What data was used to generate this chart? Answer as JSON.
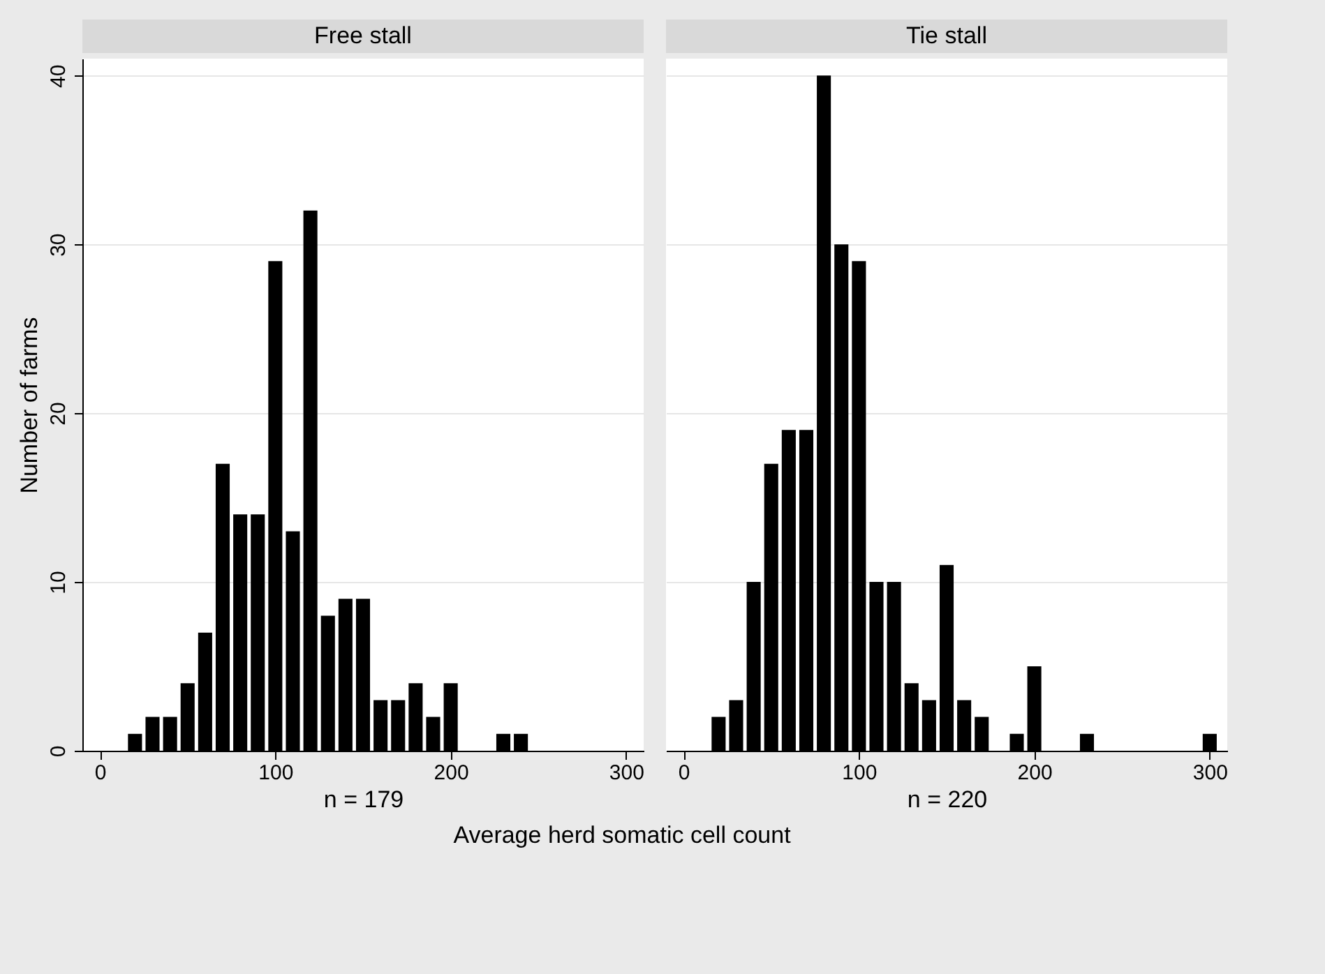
{
  "chart_data": [
    {
      "type": "bar",
      "title": "Free stall",
      "xlabel": "Average herd somatic cell count",
      "ylabel": "Number of farms",
      "annotations": [
        "n = 179"
      ],
      "color": "#000000",
      "xlim": [
        -10,
        310
      ],
      "xticks": [
        0,
        100,
        200,
        300
      ],
      "ylim": [
        0,
        41
      ],
      "yticks": [
        0,
        10,
        20,
        30,
        40
      ],
      "grid": "y",
      "x": [
        20,
        30,
        40,
        50,
        60,
        70,
        80,
        90,
        100,
        110,
        120,
        130,
        140,
        150,
        160,
        170,
        180,
        190,
        200,
        230,
        240
      ],
      "values": [
        1,
        2,
        2,
        4,
        7,
        17,
        14,
        14,
        29,
        13,
        32,
        8,
        9,
        9,
        3,
        3,
        4,
        2,
        4,
        1,
        1
      ]
    },
    {
      "type": "bar",
      "title": "Tie stall",
      "annotations": [
        "n = 220"
      ],
      "color": "#000000",
      "xlim": [
        -10,
        310
      ],
      "xticks": [
        0,
        100,
        200,
        300
      ],
      "ylim": [
        0,
        41
      ],
      "yticks": [
        0,
        10,
        20,
        30,
        40
      ],
      "grid": "y",
      "tick_labels": "x",
      "x": [
        20,
        30,
        40,
        50,
        60,
        70,
        80,
        90,
        100,
        110,
        120,
        130,
        140,
        150,
        160,
        170,
        180,
        190,
        200,
        230,
        300
      ],
      "values": [
        2,
        3,
        10,
        17,
        19,
        19,
        40,
        30,
        29,
        10,
        10,
        4,
        3,
        11,
        3,
        2,
        0,
        1,
        5,
        1,
        1
      ]
    }
  ]
}
